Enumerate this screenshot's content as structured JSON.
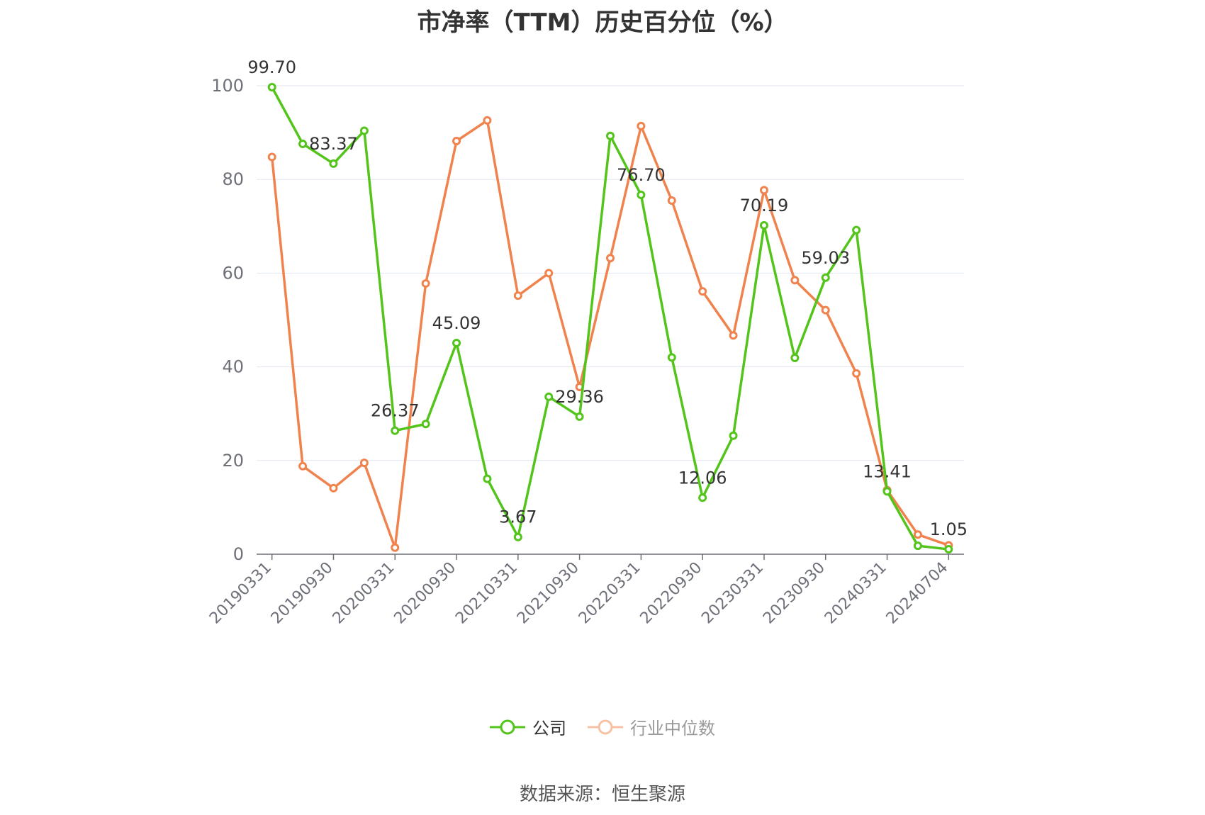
{
  "chart_data": {
    "type": "line",
    "title": "市净率（TTM）历史百分位（%）",
    "x": [
      "20190331",
      "20190630",
      "20190930",
      "20191231",
      "20200331",
      "20200630",
      "20200930",
      "20201231",
      "20210331",
      "20210630",
      "20210930",
      "20211231",
      "20220331",
      "20220630",
      "20220930",
      "20221231",
      "20230331",
      "20230630",
      "20230930",
      "20231231",
      "20240331",
      "20240630",
      "20240704"
    ],
    "x_tick_labels": [
      "20190331",
      "20190930",
      "20200331",
      "20200930",
      "20210331",
      "20210930",
      "20220331",
      "20220930",
      "20230331",
      "20230930",
      "20240331",
      "20240704"
    ],
    "ylim": [
      0,
      100
    ],
    "y_ticks": [
      "0",
      "20",
      "40",
      "60",
      "80",
      "100"
    ],
    "grid": true,
    "legend_position": "bottom",
    "series": [
      {
        "name": "公司",
        "color": "#52c41a",
        "values": [
          99.7,
          87.6,
          83.37,
          90.4,
          26.37,
          27.8,
          45.09,
          16.1,
          3.67,
          33.6,
          29.36,
          89.3,
          76.7,
          42.0,
          12.06,
          25.3,
          70.19,
          41.9,
          59.03,
          69.2,
          13.41,
          1.8,
          1.05
        ],
        "data_labels": [
          {
            "index": 0,
            "text": "99.70"
          },
          {
            "index": 2,
            "text": "83.37"
          },
          {
            "index": 4,
            "text": "26.37"
          },
          {
            "index": 6,
            "text": "45.09"
          },
          {
            "index": 8,
            "text": "3.67"
          },
          {
            "index": 10,
            "text": "29.36"
          },
          {
            "index": 12,
            "text": "76.70"
          },
          {
            "index": 14,
            "text": "12.06"
          },
          {
            "index": 16,
            "text": "70.19"
          },
          {
            "index": 18,
            "text": "59.03"
          },
          {
            "index": 20,
            "text": "13.41"
          },
          {
            "index": 22,
            "text": "1.05"
          }
        ]
      },
      {
        "name": "行业中位数",
        "color": "#f0834d",
        "values": [
          84.8,
          18.8,
          14.1,
          19.5,
          1.4,
          57.8,
          88.2,
          92.6,
          55.2,
          60.0,
          35.7,
          63.2,
          91.4,
          75.5,
          56.1,
          46.7,
          77.7,
          58.5,
          52.1,
          38.6,
          13.7,
          4.2,
          1.9
        ]
      }
    ]
  },
  "legend": {
    "company": "公司",
    "industry": "行业中位数"
  },
  "source": "数据来源：恒生聚源"
}
